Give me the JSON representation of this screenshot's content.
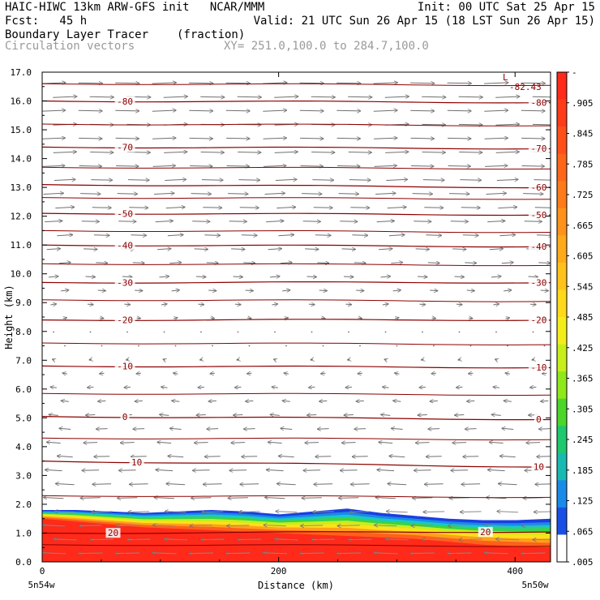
{
  "header": {
    "title_left": "HAIC-HIWC 13km ARW-GFS init   NCAR/MMM",
    "init": "Init: 00 UTC Sat 25 Apr 15",
    "fcst": "Fcst:   45 h",
    "valid": "Valid: 21 UTC Sun 26 Apr 15 (18 LST Sun 26 Apr 15)",
    "field_name": "Boundary Layer Tracer",
    "field_units": "(fraction)",
    "vector_name": "Circulation vectors",
    "xy": "XY= 251.0,100.0 to 284.7,100.0"
  },
  "chart_data": {
    "type": "heatmap",
    "xlabel": "Distance (km)",
    "ylabel": "Height (km)",
    "xlim": [
      0,
      430
    ],
    "ylim": [
      0,
      17
    ],
    "xticks": [
      "0",
      "200",
      "400"
    ],
    "yticks": [
      "0.0",
      "1.0",
      "2.0",
      "3.0",
      "4.0",
      "5.0",
      "6.0",
      "7.0",
      "8.0",
      "9.0",
      "10.0",
      "11.0",
      "12.0",
      "13.0",
      "14.0",
      "15.0",
      "16.0",
      "17.0"
    ],
    "x_end_labels": {
      "left": "5n54w",
      "right": "5n50w"
    },
    "colorbar_labels": [
      "-",
      ".905",
      ".845",
      ".785",
      ".725",
      ".665",
      ".605",
      ".545",
      ".485",
      ".425",
      ".365",
      ".305",
      ".245",
      ".185",
      ".125",
      ".065",
      ".005"
    ],
    "colorbar_colors": [
      "#ff2a1a",
      "#ff3b1a",
      "#ff501a",
      "#ff661a",
      "#ff7b1a",
      "#ff921a",
      "#ffaa1a",
      "#ffc21a",
      "#ffd91a",
      "#f3ee1a",
      "#c8ee1a",
      "#8fe81a",
      "#4cd62a",
      "#1ec86e",
      "#18b9b0",
      "#1a8ae8",
      "#1a4fe6",
      "#ffffff"
    ],
    "tracer_top_km": [
      1.8,
      1.8,
      1.75,
      1.7,
      1.75,
      1.8,
      1.75,
      1.65,
      1.75,
      1.85,
      1.7,
      1.6,
      1.5,
      1.45,
      1.45,
      1.5
    ],
    "tracer_red_top_km": [
      1.5,
      1.4,
      1.3,
      1.2,
      1.15,
      1.1,
      1.05,
      1.0,
      0.95,
      0.9,
      0.85,
      0.8,
      0.7,
      0.6,
      0.55,
      0.5
    ],
    "temperature_contours": [
      {
        "label": "20",
        "y_left": 1.0,
        "y_right": 1.05,
        "label_x": [
          60,
          375
        ]
      },
      {
        "label": "10",
        "y_left": 3.5,
        "y_right": 3.3,
        "label_x": [
          80,
          420
        ]
      },
      {
        "label": "0",
        "y_left": 5.05,
        "y_right": 4.95,
        "label_x": [
          70,
          420
        ]
      },
      {
        "label": "-10",
        "y_left": 6.8,
        "y_right": 6.75,
        "label_x": [
          70,
          420
        ]
      },
      {
        "label": "-20",
        "y_left": 8.4,
        "y_right": 8.4,
        "label_x": [
          70,
          420
        ]
      },
      {
        "label": "-30",
        "y_left": 9.7,
        "y_right": 9.7,
        "label_x": [
          70,
          420
        ]
      },
      {
        "label": "-40",
        "y_left": 11.0,
        "y_right": 10.95,
        "label_x": [
          70,
          420
        ]
      },
      {
        "label": "-50",
        "y_left": 12.1,
        "y_right": 12.05,
        "label_x": [
          70,
          420
        ]
      },
      {
        "label": "-60",
        "y_left": 13.1,
        "y_right": 13.0,
        "label_x": [
          420
        ]
      },
      {
        "label": "-70",
        "y_left": 14.4,
        "y_right": 14.35,
        "label_x": [
          70,
          420
        ]
      },
      {
        "label": "-80",
        "y_left": 16.0,
        "y_right": 15.95,
        "label_x": [
          70,
          420
        ]
      }
    ],
    "extra_contour_heights_km": [
      0.6,
      2.3,
      4.3,
      5.85,
      7.6,
      9.1,
      10.35,
      11.5,
      12.65,
      13.7,
      15.2,
      16.6
    ],
    "min_label": {
      "text": "-82.43",
      "marker": "L",
      "x": 395,
      "y": 16.6
    },
    "wind_u_by_level": [
      {
        "h": 0.3,
        "u": -1.0
      },
      {
        "h": 1.5,
        "u": -0.9
      },
      {
        "h": 2.5,
        "u": -0.8
      },
      {
        "h": 4.0,
        "u": -0.6
      },
      {
        "h": 5.0,
        "u": -0.4
      },
      {
        "h": 6.5,
        "u": -0.2
      },
      {
        "h": 7.5,
        "u": 0.0
      },
      {
        "h": 9.0,
        "u": 0.25
      },
      {
        "h": 10.5,
        "u": 0.5
      },
      {
        "h": 12.0,
        "u": 0.75
      },
      {
        "h": 14.0,
        "u": 0.95
      },
      {
        "h": 17.0,
        "u": 1.0
      }
    ]
  },
  "colors": {
    "contour": "#8b0000",
    "vector": "#6f6f6f",
    "vector_low": "#8a8a8a"
  }
}
